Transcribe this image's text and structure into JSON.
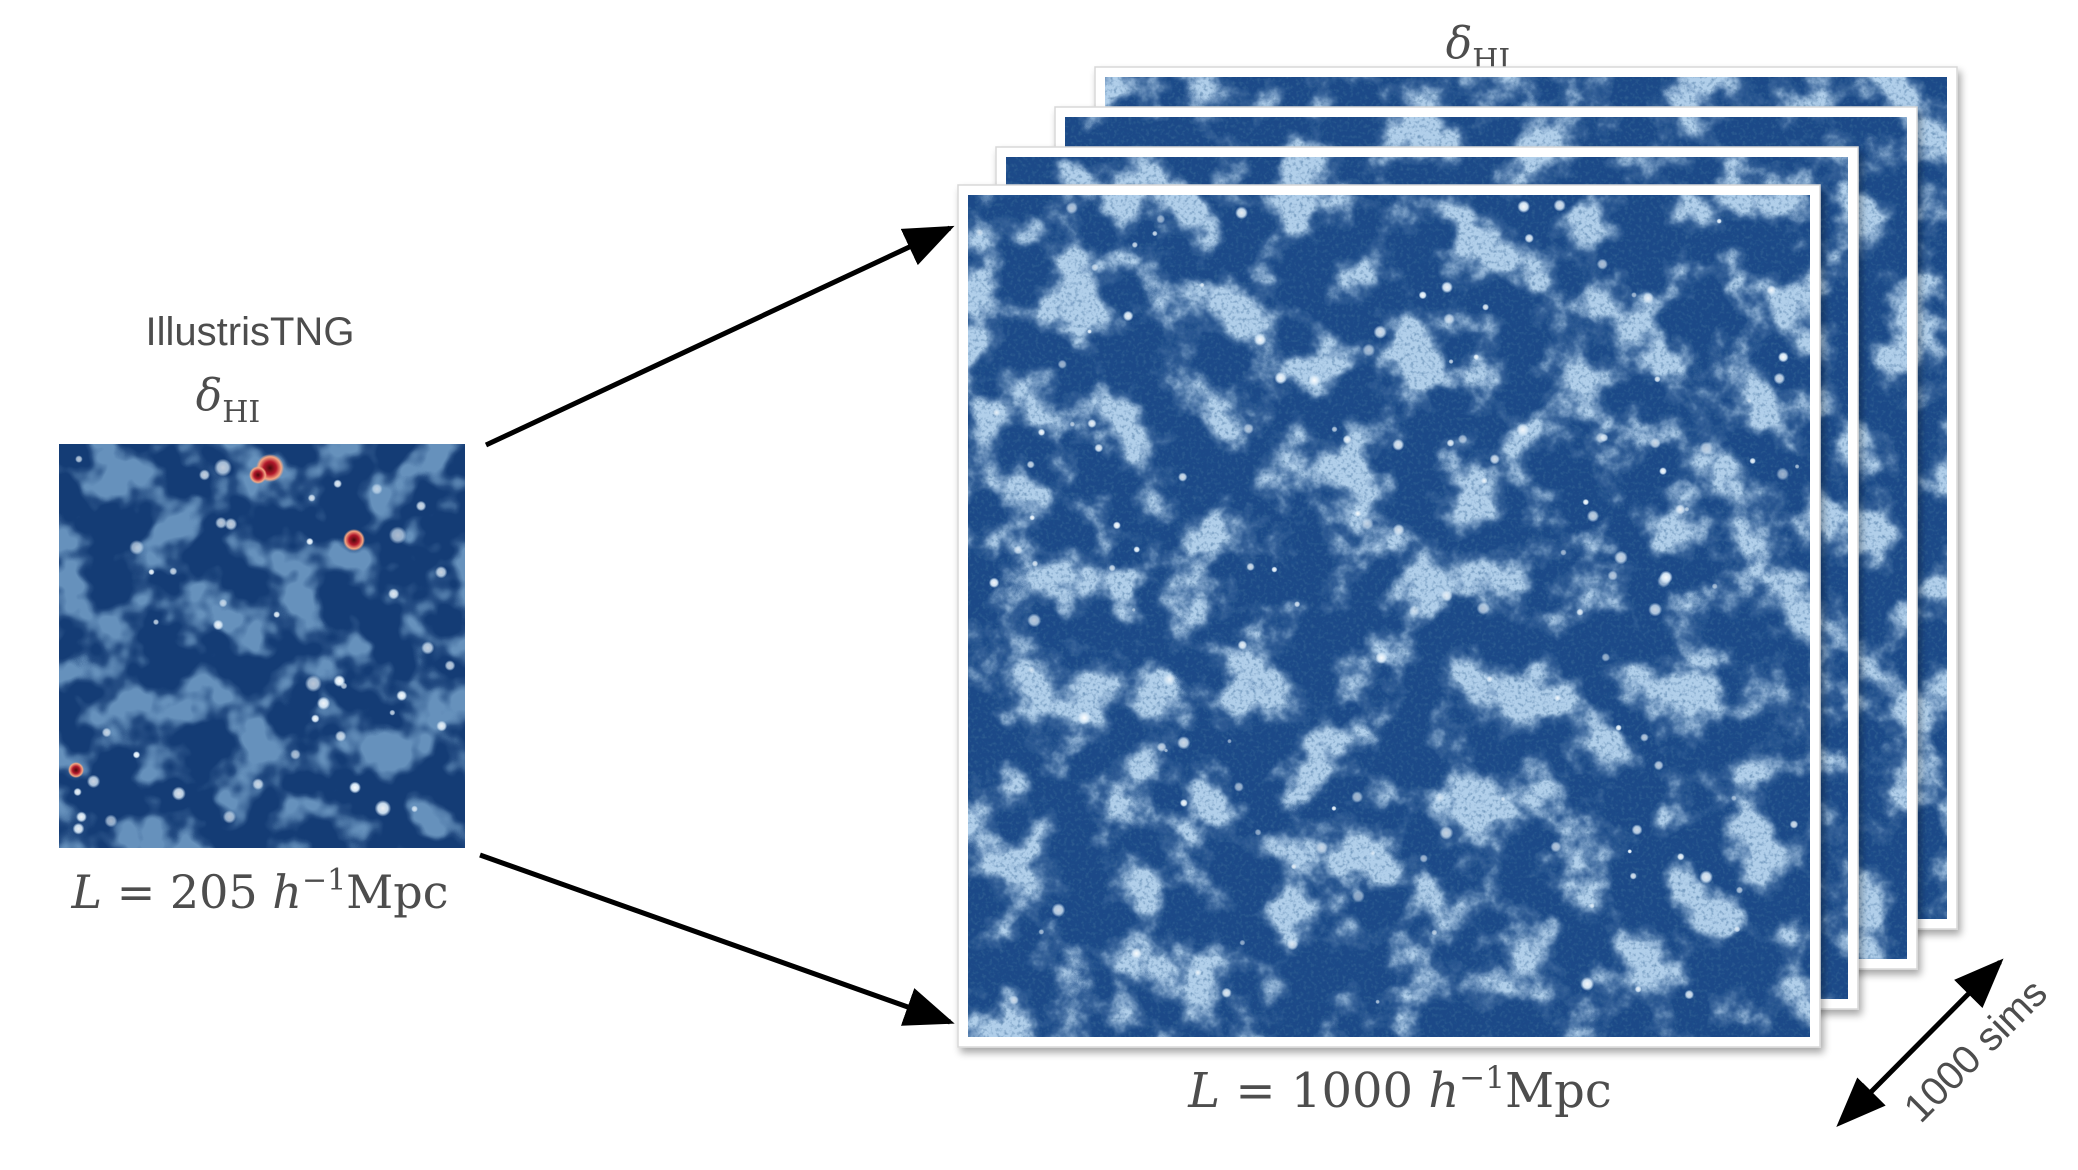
{
  "left_panel": {
    "title": "IllustrisTNG",
    "field_symbol": "δ",
    "field_subscript": "HI",
    "box_size": {
      "var": "L",
      "eq": "=",
      "value": "205",
      "h": "h",
      "exp": "−1",
      "unit": "Mpc"
    }
  },
  "right_panel": {
    "field_symbol": "δ",
    "field_subscript": "HI",
    "stack_count": 4,
    "box_size": {
      "var": "L",
      "eq": "=",
      "value": "1000",
      "h": "h",
      "exp": "−1",
      "unit": "Mpc"
    },
    "stack_label": "1000 sims"
  },
  "colors": {
    "field_dark": "#133d78",
    "field_mid": "#2d67aa",
    "filament": "#a9cbe8",
    "node": "#ffffff",
    "hot_spot": "#b2182b",
    "arrow": "#000000",
    "text": "#4d4d4d"
  },
  "icons": {
    "arrow": "arrow-right-icon",
    "double_arrow": "double-arrow-icon"
  }
}
